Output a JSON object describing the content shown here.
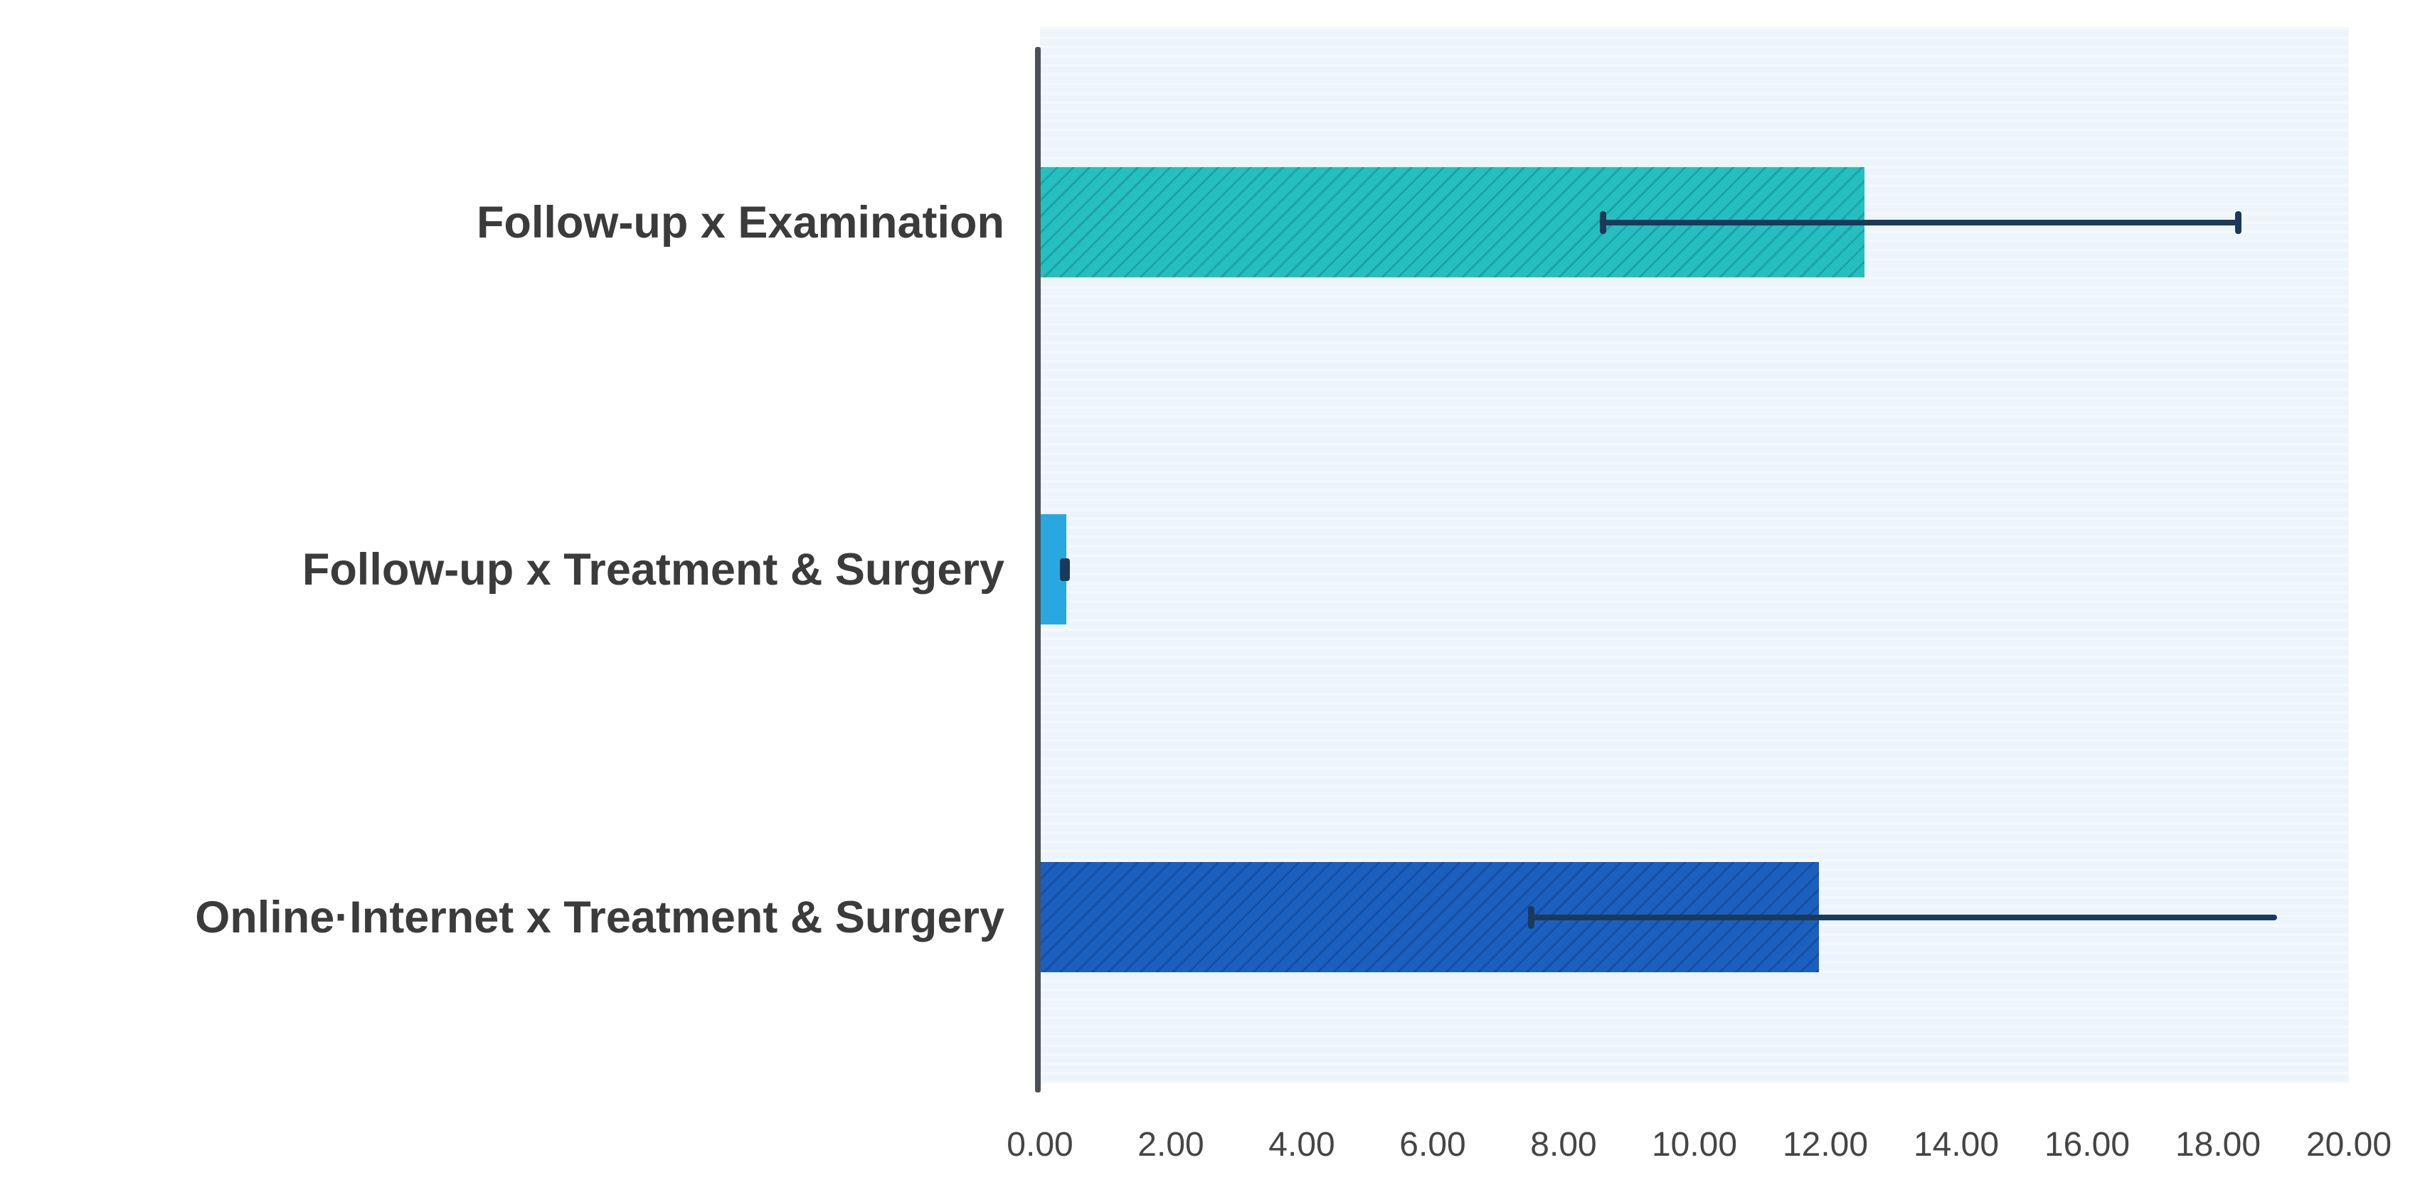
{
  "chart_data": {
    "type": "bar",
    "orientation": "horizontal",
    "title": "",
    "xlabel": "",
    "ylabel": "",
    "grid": false,
    "legend": false,
    "xlim": [
      0,
      20
    ],
    "x_ticks": [
      {
        "value": 0,
        "label": "0.00"
      },
      {
        "value": 2,
        "label": "2.00"
      },
      {
        "value": 4,
        "label": "4.00"
      },
      {
        "value": 6,
        "label": "6.00"
      },
      {
        "value": 8,
        "label": "8.00"
      },
      {
        "value": 10,
        "label": "10.00"
      },
      {
        "value": 12,
        "label": "12.00"
      },
      {
        "value": 14,
        "label": "14.00"
      },
      {
        "value": 16,
        "label": "16.00"
      },
      {
        "value": 18,
        "label": "18.00"
      },
      {
        "value": 20,
        "label": "20.00"
      }
    ],
    "categories": [
      "Follow-up x Examination",
      "Follow-up x Treatment & Surgery",
      "Online·Internet x Treatment & Surgery"
    ],
    "bars": [
      {
        "label": "Follow-up x Examination",
        "value": 12.6,
        "error_low": 8.6,
        "error_high": 18.3,
        "color": "#26bfc0",
        "hatch": true,
        "hatch_color": "rgba(0,100,110,0.30)",
        "cap_left": true,
        "cap_right": true
      },
      {
        "label": "Follow-up x Treatment & Surgery",
        "value": 0.4,
        "error_low": 0.35,
        "error_high": 0.4,
        "color": "#29a8df",
        "hatch": false,
        "hatch_color": null,
        "cap_left": true,
        "cap_right": true
      },
      {
        "label": "Online·Internet x Treatment & Surgery",
        "value": 11.9,
        "error_low": 7.5,
        "error_high": 18.9,
        "color": "#1b60be",
        "hatch": true,
        "hatch_color": "rgba(8,40,110,0.30)",
        "cap_left": true,
        "cap_right": false
      }
    ],
    "colors": {
      "error_bar": "#1b3a5a",
      "plot_background": "#edf5fa",
      "axis_line": "#4c4f54",
      "category_label_text": "#3b3b3b",
      "tick_label_text": "#454545",
      "page_background": "#ffffff"
    }
  }
}
